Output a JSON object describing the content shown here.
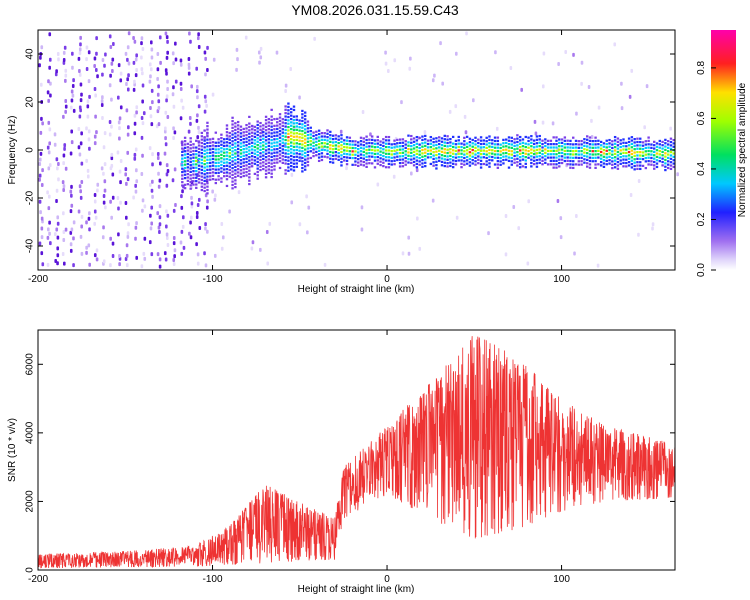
{
  "title": "YM08.2026.031.15.59.C43",
  "chart_data": [
    {
      "type": "heatmap",
      "xlabel": "Height of straight line (km)",
      "ylabel": "Frequency (Hz)",
      "xlim": [
        -200,
        165
      ],
      "ylim": [
        -50,
        50
      ],
      "xticks": [
        -200,
        -100,
        0,
        100
      ],
      "yticks": [
        -40,
        -20,
        0,
        20,
        40
      ],
      "colorbar": {
        "label": "Normalized spectral amplitude",
        "range": [
          0,
          0.95
        ],
        "ticks": [
          0.0,
          0.2,
          0.4,
          0.6,
          0.8
        ]
      },
      "trace_frequency_hz": [
        {
          "x": -115,
          "f": -5
        },
        {
          "x": -100,
          "f": -3
        },
        {
          "x": -85,
          "f": 0
        },
        {
          "x": -70,
          "f": 2
        },
        {
          "x": -55,
          "f": 6
        },
        {
          "x": -48,
          "f": 4
        },
        {
          "x": -40,
          "f": 3
        },
        {
          "x": -20,
          "f": 0
        },
        {
          "x": 0,
          "f": 0
        },
        {
          "x": 50,
          "f": 0
        },
        {
          "x": 100,
          "f": 0
        },
        {
          "x": 165,
          "f": -1
        }
      ]
    },
    {
      "type": "line",
      "xlabel": "Height of straight line (km)",
      "ylabel": "SNR (10 * v/v)",
      "xlim": [
        -200,
        165
      ],
      "ylim": [
        0,
        7000
      ],
      "xticks": [
        -200,
        -100,
        0,
        100
      ],
      "yticks": [
        0,
        2000,
        4000,
        6000
      ],
      "color": "#ee3333",
      "envelope": [
        {
          "x": -200,
          "low": 50,
          "high": 450
        },
        {
          "x": -150,
          "low": 80,
          "high": 550
        },
        {
          "x": -110,
          "low": 100,
          "high": 700
        },
        {
          "x": -90,
          "low": 150,
          "high": 1300
        },
        {
          "x": -70,
          "low": 200,
          "high": 2500
        },
        {
          "x": -50,
          "low": 250,
          "high": 2000
        },
        {
          "x": -30,
          "low": 300,
          "high": 1500
        },
        {
          "x": -25,
          "low": 1500,
          "high": 3000
        },
        {
          "x": 0,
          "low": 2200,
          "high": 4200
        },
        {
          "x": 25,
          "low": 1500,
          "high": 5500
        },
        {
          "x": 50,
          "low": 900,
          "high": 6900
        },
        {
          "x": 75,
          "low": 1200,
          "high": 6200
        },
        {
          "x": 100,
          "low": 1700,
          "high": 5000
        },
        {
          "x": 125,
          "low": 2000,
          "high": 4200
        },
        {
          "x": 165,
          "low": 2100,
          "high": 3700
        }
      ]
    }
  ]
}
